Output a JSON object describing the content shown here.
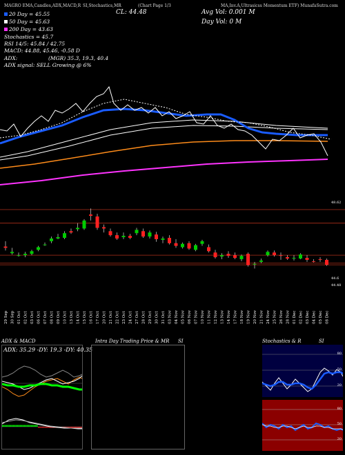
{
  "header": {
    "left": "MAGRO EMA,Candles,ADX,MACD,R",
    "mid1": "SI,Stochastics,MR",
    "mid2": "(Chart Page 1/3",
    "mid3": "MA,Inv.A,Ultrasicss Momentum ETF) MunafaSutra.com"
  },
  "legend": {
    "ema20": "20 Day = 45.55",
    "ema50": "50 Day = 45.63",
    "ema200": "200 Day = 43.63",
    "stoch": "Stochastics = 45.7",
    "rsi": "RSI 14/5: 45.84 / 42.75",
    "macd": "MACD: 44.88, 45.46, -0.58  D",
    "adx": "ADX:",
    "adx_vals": "(MGR) 35.3, 19.3, 40.4",
    "adx_signal": "ADX signal: SELL Growing @ 6%"
  },
  "cl": "CL: 44.48",
  "avg_vol": "Avg Vol: 0.001  M",
  "day_vol": "Day Vol: 0  M",
  "colors": {
    "ema20": "#1a5cff",
    "ema50": "#ffffff",
    "ema100": "#ff8c1a",
    "ema200": "#ff33ff",
    "up": "#00cc00",
    "down": "#ff2020",
    "level": "#b0301a",
    "stoch_bg": "#000040",
    "rsi_bg": "#8b0000"
  },
  "price_axis": [
    "48.62",
    "44.6",
    "44.48"
  ],
  "dates": [
    "29 Sep",
    "30 Sep",
    "01 Oct",
    "02 Oct",
    "03 Oct",
    "06 Oct",
    "07 Oct",
    "08 Oct",
    "09 Oct",
    "10 Oct",
    "13 Oct",
    "14 Oct",
    "15 Oct",
    "16 Oct",
    "17 Oct",
    "20 Oct",
    "21 Oct",
    "22 Oct",
    "23 Oct",
    "24 Oct",
    "27 Oct",
    "28 Oct",
    "29 Oct",
    "30 Oct",
    "31 Oct",
    "03 Nov",
    "04 Nov",
    "05 Nov",
    "06 Nov",
    "07 Nov",
    "10 Nov",
    "11 Nov",
    "12 Nov",
    "13 Nov",
    "14 Nov",
    "17 Nov",
    "18 Nov",
    "19 Nov",
    "20 Nov",
    "21 Nov",
    "24 Nov",
    "25 Nov",
    "26 Nov",
    "28 Nov",
    "01 Dec",
    "02 Dec",
    "03 Dec",
    "04 Dec",
    "05 Dec",
    "08 Dec"
  ],
  "panels": {
    "adx_title": "ADX  & MACD",
    "adx_values": "ADX: 35.29 -DY: 19.3 -DY: 40.35",
    "intra_title": "Intra  Day Trading Price  & MR",
    "intra_si": "SI",
    "stoch_title": "Stochastics & R",
    "stoch_si": "SI",
    "stoch_ticks": [
      "80",
      "50",
      "20"
    ],
    "rsi_ticks": [
      "80",
      "50",
      "20"
    ]
  },
  "chart_data": {
    "type": "candlestick",
    "title": "",
    "x_labels_ref": "dates",
    "ylim": [
      43.4,
      49.6
    ],
    "candles": [
      {
        "o": 45.85,
        "h": 46.25,
        "l": 45.55,
        "c": 45.75
      },
      {
        "o": 45.35,
        "h": 45.75,
        "l": 45.25,
        "c": 45.45
      },
      {
        "o": 45.2,
        "h": 45.4,
        "l": 45.1,
        "c": 45.2
      },
      {
        "o": 45.2,
        "h": 45.45,
        "l": 45.05,
        "c": 45.3
      },
      {
        "o": 45.3,
        "h": 45.6,
        "l": 45.2,
        "c": 45.5
      },
      {
        "o": 45.6,
        "h": 45.9,
        "l": 45.5,
        "c": 45.8
      },
      {
        "o": 45.95,
        "h": 46.15,
        "l": 45.9,
        "c": 46.0
      },
      {
        "o": 46.25,
        "h": 46.6,
        "l": 46.1,
        "c": 46.45
      },
      {
        "o": 46.45,
        "h": 46.8,
        "l": 46.4,
        "c": 46.55
      },
      {
        "o": 46.5,
        "h": 47.0,
        "l": 46.4,
        "c": 46.85
      },
      {
        "o": 47.0,
        "h": 47.2,
        "l": 46.8,
        "c": 46.9
      },
      {
        "o": 47.15,
        "h": 47.6,
        "l": 47.0,
        "c": 47.25
      },
      {
        "o": 47.2,
        "h": 47.9,
        "l": 47.1,
        "c": 47.8
      },
      {
        "o": 48.25,
        "h": 48.7,
        "l": 47.8,
        "c": 48.15
      },
      {
        "o": 48.1,
        "h": 48.3,
        "l": 47.1,
        "c": 47.25
      },
      {
        "o": 47.3,
        "h": 47.5,
        "l": 46.9,
        "c": 47.2
      },
      {
        "o": 47.0,
        "h": 47.2,
        "l": 46.6,
        "c": 46.7
      },
      {
        "o": 46.7,
        "h": 46.9,
        "l": 46.35,
        "c": 46.45
      },
      {
        "o": 46.55,
        "h": 46.9,
        "l": 46.4,
        "c": 46.65
      },
      {
        "o": 46.65,
        "h": 46.8,
        "l": 46.4,
        "c": 46.5
      },
      {
        "o": 46.85,
        "h": 47.25,
        "l": 46.7,
        "c": 47.1
      },
      {
        "o": 47.0,
        "h": 47.2,
        "l": 46.5,
        "c": 46.6
      },
      {
        "o": 46.6,
        "h": 47.05,
        "l": 46.45,
        "c": 46.9
      },
      {
        "o": 46.75,
        "h": 46.95,
        "l": 46.2,
        "c": 46.4
      },
      {
        "o": 46.35,
        "h": 46.6,
        "l": 46.1,
        "c": 46.45
      },
      {
        "o": 46.5,
        "h": 46.7,
        "l": 46.0,
        "c": 46.1
      },
      {
        "o": 46.1,
        "h": 46.4,
        "l": 45.75,
        "c": 45.9
      },
      {
        "o": 45.8,
        "h": 46.15,
        "l": 45.7,
        "c": 46.05
      },
      {
        "o": 46.1,
        "h": 46.25,
        "l": 45.6,
        "c": 45.7
      },
      {
        "o": 45.6,
        "h": 46.05,
        "l": 45.5,
        "c": 45.95
      },
      {
        "o": 46.05,
        "h": 46.35,
        "l": 45.9,
        "c": 46.25
      },
      {
        "o": 45.8,
        "h": 46.0,
        "l": 45.4,
        "c": 45.5
      },
      {
        "o": 45.4,
        "h": 45.6,
        "l": 44.95,
        "c": 45.05
      },
      {
        "o": 45.1,
        "h": 45.35,
        "l": 44.9,
        "c": 45.2
      },
      {
        "o": 45.3,
        "h": 45.5,
        "l": 45.0,
        "c": 45.15
      },
      {
        "o": 45.2,
        "h": 45.4,
        "l": 44.9,
        "c": 45.0
      },
      {
        "o": 44.9,
        "h": 45.25,
        "l": 44.75,
        "c": 45.15
      },
      {
        "o": 45.3,
        "h": 45.4,
        "l": 44.35,
        "c": 44.45
      },
      {
        "o": 44.5,
        "h": 44.7,
        "l": 44.2,
        "c": 44.55
      },
      {
        "o": 44.7,
        "h": 44.95,
        "l": 44.6,
        "c": 44.8
      },
      {
        "o": 45.2,
        "h": 45.55,
        "l": 45.1,
        "c": 45.45
      },
      {
        "o": 45.4,
        "h": 45.55,
        "l": 45.1,
        "c": 45.2
      },
      {
        "o": 45.2,
        "h": 45.4,
        "l": 44.85,
        "c": 45.15
      },
      {
        "o": 45.05,
        "h": 45.2,
        "l": 44.85,
        "c": 44.95
      },
      {
        "o": 45.0,
        "h": 45.2,
        "l": 44.8,
        "c": 45.0
      },
      {
        "o": 44.95,
        "h": 45.35,
        "l": 44.9,
        "c": 45.25
      },
      {
        "o": 45.0,
        "h": 45.2,
        "l": 44.7,
        "c": 44.85
      },
      {
        "o": 44.75,
        "h": 44.9,
        "l": 44.65,
        "c": 44.7
      },
      {
        "o": 44.9,
        "h": 45.05,
        "l": 44.7,
        "c": 44.85
      },
      {
        "o": 44.85,
        "h": 44.95,
        "l": 44.4,
        "c": 44.48
      }
    ],
    "levels": [
      48.62,
      47.6,
      45.2,
      44.6,
      44.48
    ]
  }
}
